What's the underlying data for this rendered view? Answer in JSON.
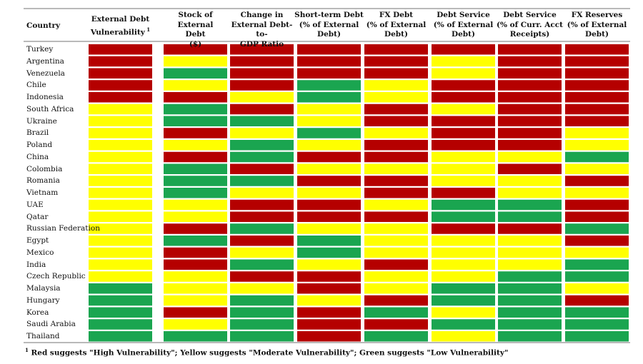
{
  "colors": {
    "red": "#b50000",
    "yellow": "#ffff00",
    "green": "#1aa550"
  },
  "chart_data": {
    "type": "heatmap",
    "header_first": "Country",
    "columns": [
      {
        "label": "External Debt\nVulnerability",
        "sup": "1"
      },
      {
        "label": "Stock of External\nDebt\n($)"
      },
      {
        "label": "Change in\nExternal Debt-to-\nGDP Ratio"
      },
      {
        "label": "Short-term Debt\n(% of External\nDebt)"
      },
      {
        "label": "FX Debt\n(% of External\nDebt)"
      },
      {
        "label": "Debt Service\n(% of External\nDebt)"
      },
      {
        "label": "Debt Service\n(% of Curr. Acct\nReceipts)"
      },
      {
        "label": "FX Reserves\n(% of External\nDebt)"
      }
    ],
    "rows": [
      {
        "country": "Turkey",
        "cells": [
          "R",
          "R",
          "R",
          "R",
          "R",
          "R",
          "R",
          "R"
        ]
      },
      {
        "country": "Argentina",
        "cells": [
          "R",
          "Y",
          "R",
          "R",
          "R",
          "Y",
          "R",
          "R"
        ]
      },
      {
        "country": "Venezuela",
        "cells": [
          "R",
          "G",
          "R",
          "R",
          "R",
          "Y",
          "R",
          "R"
        ]
      },
      {
        "country": "Chile",
        "cells": [
          "R",
          "Y",
          "R",
          "G",
          "Y",
          "R",
          "R",
          "R"
        ]
      },
      {
        "country": "Indonesia",
        "cells": [
          "R",
          "R",
          "Y",
          "G",
          "Y",
          "R",
          "R",
          "R"
        ]
      },
      {
        "country": "South Africa",
        "cells": [
          "Y",
          "G",
          "R",
          "Y",
          "R",
          "Y",
          "R",
          "R"
        ]
      },
      {
        "country": "Ukraine",
        "cells": [
          "Y",
          "G",
          "G",
          "Y",
          "R",
          "R",
          "R",
          "R"
        ]
      },
      {
        "country": "Brazil",
        "cells": [
          "Y",
          "R",
          "Y",
          "G",
          "Y",
          "R",
          "R",
          "Y"
        ]
      },
      {
        "country": "Poland",
        "cells": [
          "Y",
          "Y",
          "G",
          "Y",
          "R",
          "R",
          "R",
          "Y"
        ]
      },
      {
        "country": "China",
        "cells": [
          "Y",
          "R",
          "G",
          "R",
          "R",
          "Y",
          "Y",
          "G"
        ]
      },
      {
        "country": "Colombia",
        "cells": [
          "Y",
          "G",
          "R",
          "Y",
          "Y",
          "Y",
          "R",
          "Y"
        ]
      },
      {
        "country": "Romania",
        "cells": [
          "Y",
          "G",
          "G",
          "R",
          "R",
          "Y",
          "Y",
          "R"
        ]
      },
      {
        "country": "Vietnam",
        "cells": [
          "Y",
          "G",
          "Y",
          "Y",
          "R",
          "R",
          "Y",
          "Y"
        ]
      },
      {
        "country": "UAE",
        "cells": [
          "Y",
          "Y",
          "R",
          "R",
          "Y",
          "G",
          "G",
          "R"
        ]
      },
      {
        "country": "Qatar",
        "cells": [
          "Y",
          "Y",
          "R",
          "R",
          "R",
          "G",
          "G",
          "R"
        ]
      },
      {
        "country": "Russian Federation",
        "cells": [
          "Y",
          "R",
          "G",
          "Y",
          "Y",
          "R",
          "R",
          "G"
        ]
      },
      {
        "country": "Egypt",
        "cells": [
          "Y",
          "G",
          "R",
          "G",
          "Y",
          "Y",
          "Y",
          "R"
        ]
      },
      {
        "country": "Mexico",
        "cells": [
          "Y",
          "R",
          "Y",
          "G",
          "Y",
          "Y",
          "Y",
          "Y"
        ]
      },
      {
        "country": "India",
        "cells": [
          "Y",
          "R",
          "G",
          "Y",
          "R",
          "Y",
          "Y",
          "G"
        ]
      },
      {
        "country": "Czech Republic",
        "cells": [
          "Y",
          "Y",
          "R",
          "R",
          "Y",
          "Y",
          "G",
          "G"
        ]
      },
      {
        "country": "Malaysia",
        "cells": [
          "G",
          "Y",
          "Y",
          "R",
          "Y",
          "G",
          "G",
          "Y"
        ]
      },
      {
        "country": "Hungary",
        "cells": [
          "G",
          "Y",
          "G",
          "Y",
          "R",
          "G",
          "G",
          "R"
        ]
      },
      {
        "country": "Korea",
        "cells": [
          "G",
          "R",
          "G",
          "R",
          "G",
          "Y",
          "G",
          "G"
        ]
      },
      {
        "country": "Saudi Arabia",
        "cells": [
          "G",
          "Y",
          "G",
          "R",
          "R",
          "G",
          "G",
          "G"
        ]
      },
      {
        "country": "Thailand",
        "cells": [
          "G",
          "G",
          "G",
          "R",
          "G",
          "Y",
          "G",
          "G"
        ]
      }
    ],
    "legend": {
      "R": "High Vulnerability",
      "Y": "Moderate Vulnerability",
      "G": "Low Vulnerability"
    },
    "footnote_sup": "1",
    "footnote": "Red suggests \"High Vulnerability\"; Yellow suggests \"Moderate Vulnerability\"; Green suggests \"Low Vulnerability\""
  }
}
